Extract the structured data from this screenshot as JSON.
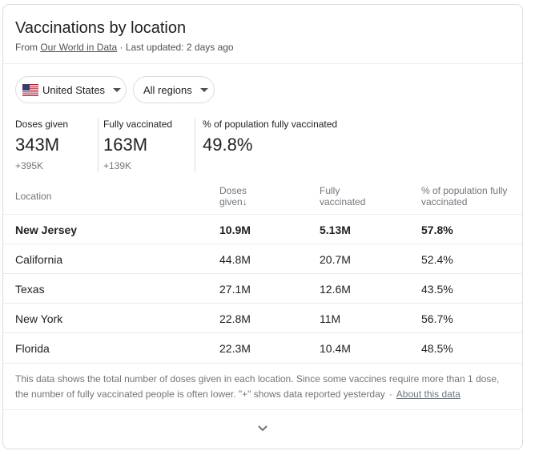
{
  "header": {
    "title": "Vaccinations by location",
    "source_prefix": "From",
    "source_link": "Our World in Data",
    "updated": "· Last updated: 2 days ago"
  },
  "filters": {
    "country": "United States",
    "region": "All regions"
  },
  "stats": [
    {
      "label": "Doses given",
      "value": "343M",
      "delta": "+395K"
    },
    {
      "label": "Fully vaccinated",
      "value": "163M",
      "delta": "+139K"
    },
    {
      "label": "% of population fully vaccinated",
      "value": "49.8%"
    }
  ],
  "table": {
    "headers": {
      "location": "Location",
      "doses_1": "Doses",
      "doses_2": "given",
      "sort_arrow": "↓",
      "fully_1": "Fully",
      "fully_2": "vaccinated",
      "pct_1": "% of population fully",
      "pct_2": "vaccinated"
    },
    "rows": [
      {
        "location": "New Jersey",
        "doses": "10.9M",
        "fully": "5.13M",
        "pct": "57.8%"
      },
      {
        "location": "California",
        "doses": "44.8M",
        "fully": "20.7M",
        "pct": "52.4%"
      },
      {
        "location": "Texas",
        "doses": "27.1M",
        "fully": "12.6M",
        "pct": "43.5%"
      },
      {
        "location": "New York",
        "doses": "22.8M",
        "fully": "11M",
        "pct": "56.7%"
      },
      {
        "location": "Florida",
        "doses": "22.3M",
        "fully": "10.4M",
        "pct": "48.5%"
      }
    ]
  },
  "footer": {
    "note": "This data shows the total number of doses given in each location. Since some vaccines require more than 1 dose, the number of fully vaccinated people is often lower. \"+\" shows data reported yesterday",
    "separator": "·",
    "about_link": "About this data"
  },
  "icons": {
    "flag": "us-flag-icon",
    "dropdown": "caret-down-icon",
    "expand": "chevron-down-icon"
  },
  "colors": {
    "text": "#202124",
    "muted": "#70757a",
    "border": "#dadce0"
  }
}
